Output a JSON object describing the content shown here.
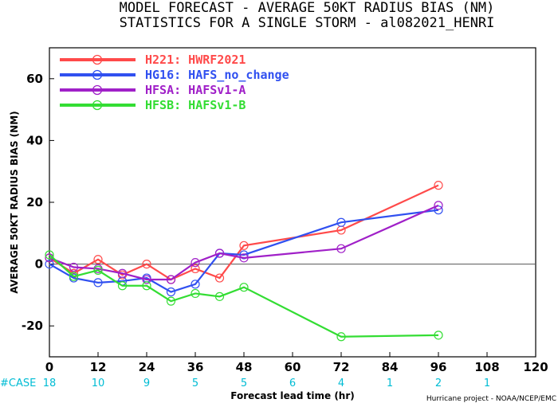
{
  "chart_data": {
    "type": "line",
    "title": "MODEL FORECAST - AVERAGE 50KT RADIUS BIAS (NM)",
    "subtitle": "STATISTICS FOR A SINGLE STORM - al082021_HENRI",
    "xlabel": "Forecast lead time (hr)",
    "ylabel": "AVERAGE 50KT RADIUS BIAS (NM)",
    "xlim": [
      0,
      120
    ],
    "ylim": [
      -30,
      70
    ],
    "xticks": [
      0,
      12,
      24,
      36,
      48,
      60,
      72,
      84,
      96,
      108,
      120
    ],
    "yticks": [
      -20,
      0,
      20,
      40,
      60
    ],
    "legend_position": "top-left",
    "series": [
      {
        "name": "H221: HWRF2021",
        "color": "#ff4a4a",
        "x": [
          0,
          6,
          12,
          18,
          24,
          30,
          36,
          42,
          48,
          72,
          96
        ],
        "y": [
          2,
          -3,
          1.5,
          -3.5,
          0,
          -5,
          -1.5,
          -4.5,
          6,
          11,
          25.5
        ]
      },
      {
        "name": "HG16: HAFS_no_change",
        "color": "#3050f0",
        "x": [
          0,
          6,
          12,
          18,
          24,
          30,
          36,
          42,
          48,
          72,
          96
        ],
        "y": [
          0,
          -4.5,
          -6,
          -5.5,
          -4.5,
          -9,
          -6.5,
          3.5,
          3,
          13.5,
          17.5
        ]
      },
      {
        "name": "HFSA: HAFSv1-A",
        "color": "#a020c8",
        "x": [
          0,
          6,
          12,
          18,
          24,
          30,
          36,
          42,
          48,
          72,
          96
        ],
        "y": [
          2,
          -1,
          -1.5,
          -3,
          -5,
          -5,
          0.5,
          3.5,
          2,
          5,
          19
        ]
      },
      {
        "name": "HFSB: HAFSv1-B",
        "color": "#33dd33",
        "x": [
          0,
          6,
          12,
          18,
          24,
          30,
          36,
          42,
          48,
          72,
          96
        ],
        "y": [
          3,
          -4,
          -2,
          -7,
          -7,
          -12,
          -9.5,
          -10.5,
          -7.5,
          -23.5,
          -23
        ]
      }
    ],
    "cases": {
      "label": "#CASE",
      "x": [
        0,
        12,
        24,
        36,
        48,
        60,
        72,
        84,
        96,
        108
      ],
      "values": [
        "18",
        "10",
        "9",
        "5",
        "5",
        "6",
        "4",
        "1",
        "2",
        "1"
      ]
    },
    "credit": "Hurricane project - NOAA/NCEP/EMC"
  }
}
